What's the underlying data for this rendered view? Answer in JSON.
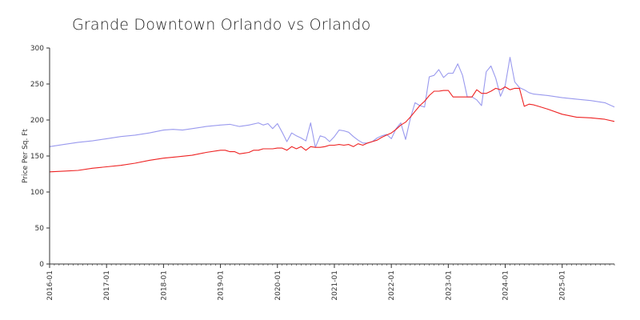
{
  "chart_data": {
    "type": "line",
    "title": "Grande Downtown Orlando vs Orlando",
    "xlabel": "",
    "ylabel": "Price Per Sq. Ft",
    "ylim": [
      0,
      300
    ],
    "yticks": [
      0,
      50,
      100,
      150,
      200,
      250,
      300
    ],
    "xlim": [
      "2016-01",
      "2025-12"
    ],
    "xticks": [
      "2016-01",
      "2017-01",
      "2018-01",
      "2019-01",
      "2020-01",
      "2021-01",
      "2022-01",
      "2023-01",
      "2024-01",
      "2025-01"
    ],
    "grid": false,
    "colors": {
      "series_1": "#9999ee",
      "series_2": "#ee2222",
      "axis": "#333333"
    },
    "series": [
      {
        "name": "Grande Downtown Orlando",
        "color": "#9999ee",
        "points": [
          [
            "2016-01",
            163
          ],
          [
            "2016-04",
            166
          ],
          [
            "2016-07",
            169
          ],
          [
            "2016-10",
            171
          ],
          [
            "2017-01",
            174
          ],
          [
            "2017-04",
            177
          ],
          [
            "2017-07",
            179
          ],
          [
            "2017-10",
            182
          ],
          [
            "2018-01",
            186
          ],
          [
            "2018-03",
            187
          ],
          [
            "2018-05",
            186
          ],
          [
            "2018-07",
            188
          ],
          [
            "2018-10",
            191
          ],
          [
            "2019-01",
            193
          ],
          [
            "2019-03",
            194
          ],
          [
            "2019-05",
            191
          ],
          [
            "2019-07",
            193
          ],
          [
            "2019-09",
            196
          ],
          [
            "2019-10",
            193
          ],
          [
            "2019-11",
            195
          ],
          [
            "2019-12",
            188
          ],
          [
            "2020-01",
            195
          ],
          [
            "2020-02",
            183
          ],
          [
            "2020-03",
            170
          ],
          [
            "2020-04",
            182
          ],
          [
            "2020-05",
            178
          ],
          [
            "2020-06",
            175
          ],
          [
            "2020-07",
            171
          ],
          [
            "2020-08",
            196
          ],
          [
            "2020-09",
            162
          ],
          [
            "2020-10",
            178
          ],
          [
            "2020-11",
            176
          ],
          [
            "2020-12",
            170
          ],
          [
            "2021-01",
            177
          ],
          [
            "2021-02",
            186
          ],
          [
            "2021-03",
            185
          ],
          [
            "2021-04",
            183
          ],
          [
            "2021-05",
            177
          ],
          [
            "2021-06",
            172
          ],
          [
            "2021-07",
            168
          ],
          [
            "2021-08",
            168
          ],
          [
            "2021-09",
            170
          ],
          [
            "2021-10",
            175
          ],
          [
            "2021-11",
            178
          ],
          [
            "2021-12",
            180
          ],
          [
            "2022-01",
            174
          ],
          [
            "2022-02",
            188
          ],
          [
            "2022-03",
            196
          ],
          [
            "2022-04",
            173
          ],
          [
            "2022-05",
            202
          ],
          [
            "2022-06",
            224
          ],
          [
            "2022-07",
            220
          ],
          [
            "2022-08",
            218
          ],
          [
            "2022-09",
            260
          ],
          [
            "2022-10",
            262
          ],
          [
            "2022-11",
            270
          ],
          [
            "2022-12",
            259
          ],
          [
            "2023-01",
            265
          ],
          [
            "2023-02",
            265
          ],
          [
            "2023-03",
            278
          ],
          [
            "2023-04",
            262
          ],
          [
            "2023-05",
            232
          ],
          [
            "2023-06",
            232
          ],
          [
            "2023-07",
            228
          ],
          [
            "2023-08",
            220
          ],
          [
            "2023-09",
            267
          ],
          [
            "2023-10",
            275
          ],
          [
            "2023-11",
            258
          ],
          [
            "2023-12",
            233
          ],
          [
            "2024-01",
            248
          ],
          [
            "2024-02",
            287
          ],
          [
            "2024-03",
            253
          ],
          [
            "2024-04",
            245
          ],
          [
            "2024-05",
            242
          ],
          [
            "2024-06",
            238
          ],
          [
            "2024-07",
            236
          ],
          [
            "2024-10",
            234
          ],
          [
            "2025-01",
            231
          ],
          [
            "2025-04",
            229
          ],
          [
            "2025-07",
            227
          ],
          [
            "2025-10",
            224
          ],
          [
            "2025-12",
            218
          ]
        ]
      },
      {
        "name": "Orlando",
        "color": "#ee2222",
        "points": [
          [
            "2016-01",
            128
          ],
          [
            "2016-04",
            129
          ],
          [
            "2016-07",
            130
          ],
          [
            "2016-10",
            133
          ],
          [
            "2017-01",
            135
          ],
          [
            "2017-04",
            137
          ],
          [
            "2017-07",
            140
          ],
          [
            "2017-10",
            144
          ],
          [
            "2018-01",
            147
          ],
          [
            "2018-04",
            149
          ],
          [
            "2018-07",
            151
          ],
          [
            "2018-10",
            155
          ],
          [
            "2019-01",
            158
          ],
          [
            "2019-02",
            158
          ],
          [
            "2019-03",
            156
          ],
          [
            "2019-04",
            156
          ],
          [
            "2019-05",
            153
          ],
          [
            "2019-06",
            154
          ],
          [
            "2019-07",
            155
          ],
          [
            "2019-08",
            158
          ],
          [
            "2019-09",
            158
          ],
          [
            "2019-10",
            160
          ],
          [
            "2019-11",
            160
          ],
          [
            "2019-12",
            160
          ],
          [
            "2020-01",
            161
          ],
          [
            "2020-02",
            161
          ],
          [
            "2020-03",
            158
          ],
          [
            "2020-04",
            163
          ],
          [
            "2020-05",
            160
          ],
          [
            "2020-06",
            163
          ],
          [
            "2020-07",
            158
          ],
          [
            "2020-08",
            163
          ],
          [
            "2020-09",
            162
          ],
          [
            "2020-10",
            162
          ],
          [
            "2020-11",
            163
          ],
          [
            "2020-12",
            165
          ],
          [
            "2021-01",
            165
          ],
          [
            "2021-02",
            166
          ],
          [
            "2021-03",
            165
          ],
          [
            "2021-04",
            166
          ],
          [
            "2021-05",
            163
          ],
          [
            "2021-06",
            167
          ],
          [
            "2021-07",
            165
          ],
          [
            "2021-08",
            168
          ],
          [
            "2021-09",
            170
          ],
          [
            "2021-10",
            172
          ],
          [
            "2021-11",
            176
          ],
          [
            "2021-12",
            179
          ],
          [
            "2022-01",
            182
          ],
          [
            "2022-02",
            187
          ],
          [
            "2022-03",
            193
          ],
          [
            "2022-04",
            197
          ],
          [
            "2022-05",
            204
          ],
          [
            "2022-06",
            212
          ],
          [
            "2022-07",
            220
          ],
          [
            "2022-08",
            226
          ],
          [
            "2022-09",
            234
          ],
          [
            "2022-10",
            240
          ],
          [
            "2022-11",
            240
          ],
          [
            "2022-12",
            241
          ],
          [
            "2023-01",
            241
          ],
          [
            "2023-02",
            232
          ],
          [
            "2023-03",
            232
          ],
          [
            "2023-04",
            232
          ],
          [
            "2023-05",
            232
          ],
          [
            "2023-06",
            232
          ],
          [
            "2023-07",
            242
          ],
          [
            "2023-08",
            237
          ],
          [
            "2023-09",
            237
          ],
          [
            "2023-10",
            240
          ],
          [
            "2023-11",
            244
          ],
          [
            "2023-12",
            242
          ],
          [
            "2024-01",
            246
          ],
          [
            "2024-02",
            242
          ],
          [
            "2024-03",
            244
          ],
          [
            "2024-04",
            244
          ],
          [
            "2024-05",
            219
          ],
          [
            "2024-06",
            222
          ],
          [
            "2024-07",
            221
          ],
          [
            "2024-08",
            219
          ],
          [
            "2024-10",
            215
          ],
          [
            "2025-01",
            208
          ],
          [
            "2025-04",
            204
          ],
          [
            "2025-07",
            203
          ],
          [
            "2025-10",
            201
          ],
          [
            "2025-12",
            198
          ]
        ]
      }
    ]
  }
}
